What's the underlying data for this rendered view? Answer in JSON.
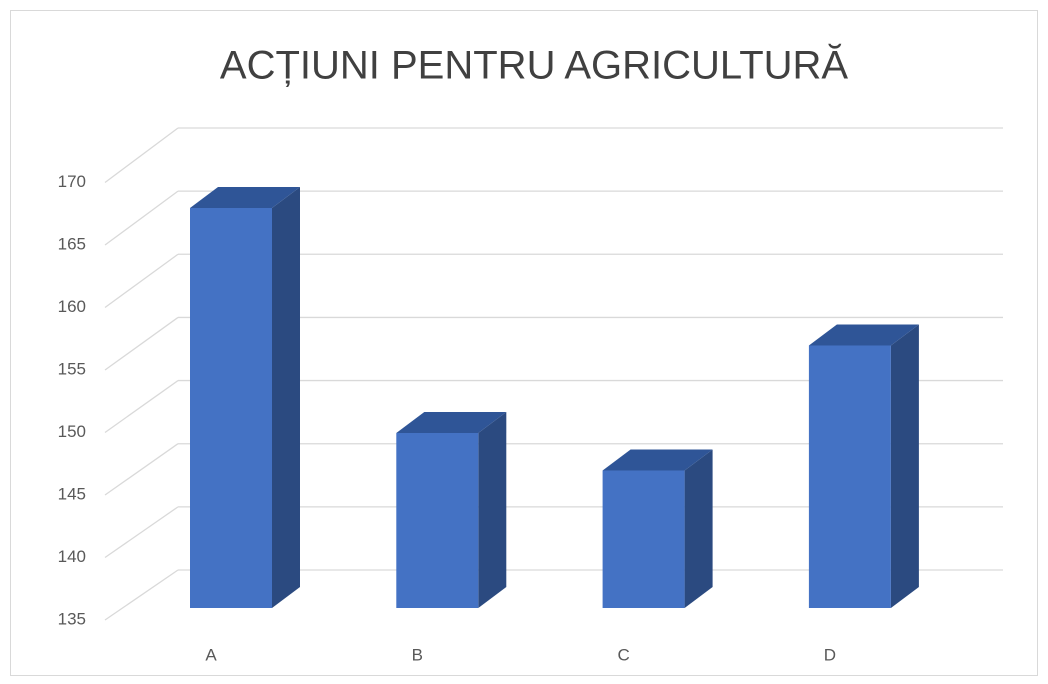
{
  "chart_data": {
    "type": "bar",
    "title": "ACȚIUNI PENTRU AGRICULTURĂ",
    "categories": [
      "A",
      "B",
      "C",
      "D"
    ],
    "values": [
      167,
      149,
      146,
      156
    ],
    "color": "#4472c4",
    "ylim": [
      135,
      170
    ],
    "yticks": [
      135,
      140,
      145,
      150,
      155,
      160,
      165,
      170
    ],
    "grid": true
  }
}
